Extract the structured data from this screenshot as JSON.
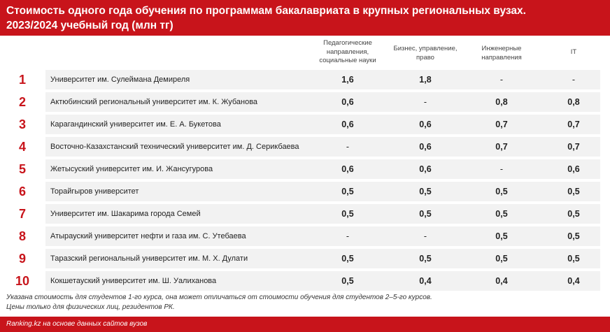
{
  "header": {
    "title_line1": "Стоимость одного года обучения по программам бакалавриата в крупных региональных вузах.",
    "title_line2": "2023/2024 учебный год (млн тг)"
  },
  "columns": [
    [
      "Педагогические",
      "направления,",
      "социальные науки"
    ],
    [
      "Бизнес, управление,",
      "право"
    ],
    [
      "Инженерные",
      "направления"
    ],
    [
      "IT"
    ]
  ],
  "rows": [
    {
      "rank": "1",
      "name": "Университет им. Сулеймана Демиреля",
      "values": [
        "1,6",
        "1,8",
        "-",
        "-"
      ]
    },
    {
      "rank": "2",
      "name": "Актюбинский региональный университет им. К. Жубанова",
      "values": [
        "0,6",
        "-",
        "0,8",
        "0,8"
      ]
    },
    {
      "rank": "3",
      "name": "Карагандинский университет им. Е. А. Букетова",
      "values": [
        "0,6",
        "0,6",
        "0,7",
        "0,7"
      ]
    },
    {
      "rank": "4",
      "name": "Восточно-Казахстанский технический университет им. Д. Серикбаева",
      "values": [
        "-",
        "0,6",
        "0,7",
        "0,7"
      ]
    },
    {
      "rank": "5",
      "name": "Жетысуский университет им. И. Жансугурова",
      "values": [
        "0,6",
        "0,6",
        "-",
        "0,6"
      ]
    },
    {
      "rank": "6",
      "name": "Торайгыров университет",
      "values": [
        "0,5",
        "0,5",
        "0,5",
        "0,5"
      ]
    },
    {
      "rank": "7",
      "name": "Университет им. Шакарима города Семей",
      "values": [
        "0,5",
        "0,5",
        "0,5",
        "0,5"
      ]
    },
    {
      "rank": "8",
      "name": "Атырауский университет нефти и газа им. С. Утебаева",
      "values": [
        "-",
        "-",
        "0,5",
        "0,5"
      ]
    },
    {
      "rank": "9",
      "name": "Таразский региональный университет им. М. Х. Дулати",
      "values": [
        "0,5",
        "0,5",
        "0,5",
        "0,5"
      ]
    },
    {
      "rank": "10",
      "name": "Кокшетауский университет им. Ш. Уалиханова",
      "values": [
        "0,5",
        "0,4",
        "0,4",
        "0,4"
      ]
    }
  ],
  "notes": {
    "line1": "Указана стоимость для студентов 1-го курса, она может отличаться от стоимости обучения для студентов 2–5-го курсов.",
    "line2": "Цены только для физических лиц, резидентов РК."
  },
  "footer": {
    "source": "Ranking.kz на основе данных сайтов вузов"
  },
  "colors": {
    "accent": "#c8141b",
    "band": "#f2f2f2"
  }
}
